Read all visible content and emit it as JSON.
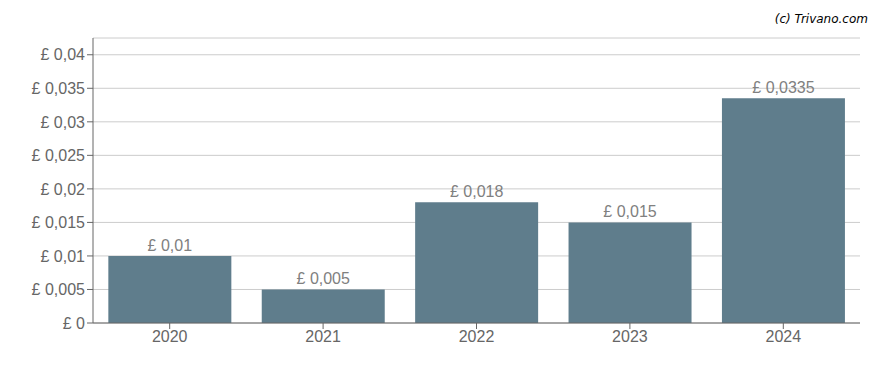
{
  "chart_data": {
    "type": "bar",
    "categories": [
      "2020",
      "2021",
      "2022",
      "2023",
      "2024"
    ],
    "values": [
      0.01,
      0.005,
      0.018,
      0.015,
      0.0335
    ],
    "value_labels": [
      "£ 0,01",
      "£ 0,005",
      "£ 0,018",
      "£ 0,015",
      "£ 0,0335"
    ],
    "color": "#5f7d8c",
    "ylim": [
      0,
      0.0425
    ],
    "yticks": [
      {
        "value": 0,
        "label": "£ 0"
      },
      {
        "value": 0.005,
        "label": "£ 0,005"
      },
      {
        "value": 0.01,
        "label": "£ 0,01"
      },
      {
        "value": 0.015,
        "label": "£ 0,015"
      },
      {
        "value": 0.02,
        "label": "£ 0,02"
      },
      {
        "value": 0.025,
        "label": "£ 0,025"
      },
      {
        "value": 0.03,
        "label": "£ 0,03"
      },
      {
        "value": 0.035,
        "label": "£ 0,035"
      },
      {
        "value": 0.04,
        "label": "£ 0,04"
      }
    ],
    "grid": true,
    "annotations": [
      "(c) Trivano.com"
    ]
  }
}
